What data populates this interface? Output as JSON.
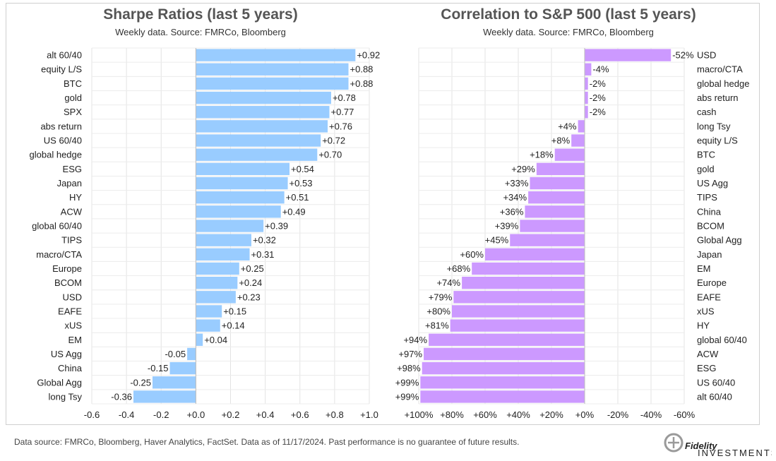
{
  "chart_data": [
    {
      "type": "bar",
      "orientation": "horizontal",
      "title": "Sharpe Ratios (last 5 years)",
      "subtitle": "Weekly data.  Source: FMRCo, Bloomberg",
      "categories": [
        "alt 60/40",
        "equity L/S",
        "BTC",
        "gold",
        "SPX",
        "abs return",
        "US 60/40",
        "global hedge",
        "ESG",
        "Japan",
        "HY",
        "ACW",
        "global 60/40",
        "TIPS",
        "macro/CTA",
        "Europe",
        "BCOM",
        "USD",
        "EAFE",
        "xUS",
        "EM",
        "US Agg",
        "China",
        "Global Agg",
        "long Tsy"
      ],
      "values": [
        0.92,
        0.88,
        0.88,
        0.78,
        0.77,
        0.76,
        0.72,
        0.7,
        0.54,
        0.53,
        0.51,
        0.49,
        0.39,
        0.32,
        0.31,
        0.25,
        0.24,
        0.23,
        0.15,
        0.14,
        0.04,
        -0.05,
        -0.15,
        -0.25,
        -0.36
      ],
      "data_labels": [
        "+0.92",
        "+0.88",
        "+0.88",
        "+0.78",
        "+0.77",
        "+0.76",
        "+0.72",
        "+0.70",
        "+0.54",
        "+0.53",
        "+0.51",
        "+0.49",
        "+0.39",
        "+0.32",
        "+0.31",
        "+0.25",
        "+0.24",
        "+0.23",
        "+0.15",
        "+0.14",
        "+0.04",
        "-0.05",
        "-0.15",
        "-0.25",
        "-0.36"
      ],
      "xlim": [
        -0.6,
        1.0
      ],
      "ticks": [
        -0.6,
        -0.4,
        -0.2,
        0.0,
        0.2,
        0.4,
        0.6,
        0.8,
        1.0
      ],
      "tick_labels": [
        "-0.6",
        "-0.4",
        "-0.2",
        "+0.0",
        "+0.2",
        "+0.4",
        "+0.6",
        "+0.8",
        "+1.0"
      ],
      "color": "#99ccff",
      "grid": true
    },
    {
      "type": "bar",
      "orientation": "horizontal",
      "title": "Correlation to S&P 500 (last 5 years)",
      "subtitle": "Weekly data.  Source: FMRCo, Bloomberg",
      "categories": [
        "USD",
        "macro/CTA",
        "global hedge",
        "abs return",
        "cash",
        "long Tsy",
        "equity L/S",
        "BTC",
        "gold",
        "US Agg",
        "TIPS",
        "China",
        "BCOM",
        "Global Agg",
        "Japan",
        "EM",
        "Europe",
        "EAFE",
        "xUS",
        "HY",
        "global 60/40",
        "ACW",
        "ESG",
        "US 60/40",
        "alt 60/40"
      ],
      "values": [
        -52,
        -4,
        -2,
        -2,
        -2,
        4,
        8,
        18,
        29,
        33,
        34,
        36,
        39,
        45,
        60,
        68,
        74,
        79,
        80,
        81,
        94,
        97,
        98,
        99,
        99
      ],
      "data_labels": [
        "-52%",
        "-4%",
        "-2%",
        "-2%",
        "-2%",
        "+4%",
        "+8%",
        "+18%",
        "+29%",
        "+33%",
        "+34%",
        "+36%",
        "+39%",
        "+45%",
        "+60%",
        "+68%",
        "+74%",
        "+79%",
        "+80%",
        "+81%",
        "+94%",
        "+97%",
        "+98%",
        "+99%",
        "+99%"
      ],
      "xlim": [
        100,
        -60
      ],
      "axis_reversed": true,
      "ticks": [
        100,
        80,
        60,
        40,
        20,
        0,
        -20,
        -40,
        -60
      ],
      "tick_labels": [
        "+100%",
        "+80%",
        "+60%",
        "+40%",
        "+20%",
        "+0%",
        "-20%",
        "-40%",
        "-60%"
      ],
      "color": "#cc99ff",
      "grid": true
    }
  ],
  "footer": "Data source: FMRCo, Bloomberg, Haver Analytics, FactSet. Data as of 11/17/2024. Past performance is no guarantee of future results.",
  "logo": {
    "name": "Fidelity",
    "tagline": "INVESTMENTS",
    "icon": "fidelity-logo-icon"
  }
}
